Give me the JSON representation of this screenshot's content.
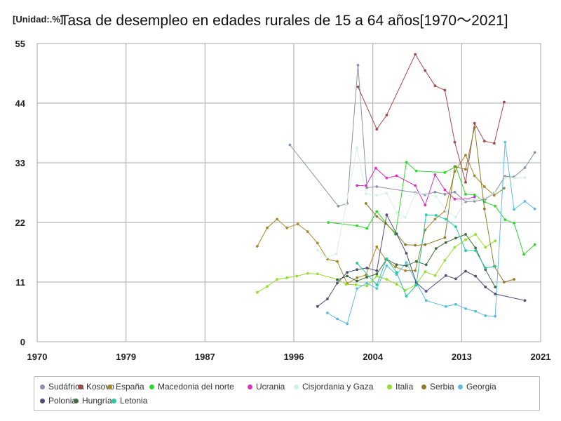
{
  "header": {
    "unit": "[Unidad:.%]",
    "title": "Tasa de desempleo en edades rurales de 15 a 64 años[1970～2021]"
  },
  "chart_data": {
    "type": "line",
    "title": "Tasa de desempleo en edades rurales de 15 a 64 años[1970～2021]",
    "unit": "[Unidad:.%]",
    "xlim": [
      1970,
      2021
    ],
    "ylim": [
      0,
      55
    ],
    "x_ticks": [
      1970,
      1979,
      1987,
      1996,
      2004,
      2013,
      2021
    ],
    "y_ticks": [
      0,
      11,
      22,
      33,
      44,
      55
    ],
    "grid": true,
    "legend_position": "bottom",
    "series": [
      {
        "name": "Sudáfrica",
        "color": "#8a92a8",
        "points": [
          [
            1995.6,
            36.3
          ],
          [
            2000.5,
            25
          ],
          [
            2001.4,
            25.5
          ],
          [
            2002.5,
            51
          ],
          [
            2003.4,
            28.4
          ],
          [
            2004.4,
            28.6
          ],
          [
            2008.3,
            27.5
          ],
          [
            2009.3,
            27.1
          ],
          [
            2010.3,
            27.6
          ],
          [
            2011.3,
            27.2
          ],
          [
            2012.3,
            27.6
          ],
          [
            2013.4,
            25.8
          ],
          [
            2014.3,
            25.9
          ],
          [
            2015.4,
            26.3
          ],
          [
            2016.3,
            27.4
          ],
          [
            2017.4,
            30.5
          ],
          [
            2018.3,
            30.4
          ],
          [
            2019.4,
            32.1
          ],
          [
            2020.4,
            34.9
          ]
        ]
      },
      {
        "name": "Kosovo",
        "color": "#a24a4a",
        "points": [
          [
            2002.5,
            47
          ],
          [
            2004.4,
            39.2
          ],
          [
            2005.4,
            41.8
          ],
          [
            2008.3,
            53
          ],
          [
            2009.3,
            50
          ],
          [
            2010.3,
            47.2
          ],
          [
            2011.3,
            46.4
          ],
          [
            2012.3,
            36.8
          ],
          [
            2013.4,
            29.4
          ],
          [
            2014.3,
            40.3
          ],
          [
            2015.3,
            37
          ],
          [
            2016.3,
            36.6
          ],
          [
            2017.3,
            44.2
          ]
        ]
      },
      {
        "name": "España",
        "color": "#a8882a",
        "points": [
          [
            1992.3,
            17.6
          ],
          [
            1993.3,
            21
          ],
          [
            1994.3,
            22.6
          ],
          [
            1995.3,
            21
          ],
          [
            1996.4,
            21.7
          ],
          [
            1997.4,
            20.3
          ],
          [
            1998.4,
            18.2
          ],
          [
            1999.4,
            15.2
          ],
          [
            2000.4,
            14.8
          ],
          [
            2001.4,
            10.7
          ],
          [
            2002.4,
            11.8
          ],
          [
            2003.3,
            12.3
          ],
          [
            2004.4,
            17.5
          ],
          [
            2005.3,
            15.2
          ],
          [
            2006.3,
            13.8
          ],
          [
            2007.3,
            13.1
          ],
          [
            2008.3,
            13.1
          ],
          [
            2009.3,
            20.6
          ],
          [
            2010.3,
            22.6
          ],
          [
            2011.3,
            24.1
          ],
          [
            2012.3,
            31.4
          ],
          [
            2013.4,
            34.4
          ],
          [
            2014.3,
            30.6
          ],
          [
            2015.3,
            28.6
          ],
          [
            2016.3,
            27
          ],
          [
            2017.3,
            28.3
          ]
        ]
      },
      {
        "name": "Macedonia del norte",
        "color": "#2ed82e",
        "points": [
          [
            1999.5,
            22
          ],
          [
            2002.4,
            21.4
          ],
          [
            2003.4,
            20.9
          ],
          [
            2004.4,
            24
          ],
          [
            2006.3,
            19.8
          ],
          [
            2007.4,
            33.1
          ],
          [
            2008.4,
            31.5
          ],
          [
            2011.3,
            31.2
          ],
          [
            2012.4,
            32.3
          ],
          [
            2013.4,
            27.2
          ],
          [
            2014.3,
            27.1
          ],
          [
            2015.3,
            25.8
          ],
          [
            2016.4,
            25
          ],
          [
            2017.4,
            22.5
          ],
          [
            2018.3,
            21.9
          ],
          [
            2019.3,
            16.1
          ],
          [
            2020.4,
            17.9
          ]
        ]
      },
      {
        "name": "Ucrania",
        "color": "#df2fc4",
        "points": [
          [
            2002.4,
            28.8
          ],
          [
            2003.3,
            28.8
          ],
          [
            2004.3,
            32
          ],
          [
            2005.4,
            30.2
          ],
          [
            2006.4,
            30.6
          ],
          [
            2008.3,
            28.8
          ],
          [
            2009.3,
            25.2
          ],
          [
            2010.3,
            30.8
          ],
          [
            2011.3,
            28
          ],
          [
            2012.3,
            26.3
          ],
          [
            2013.4,
            26.3
          ],
          [
            2014.3,
            26.7
          ]
        ]
      },
      {
        "name": "Cisjordania y Gaza",
        "color": "#d6efe4",
        "points": [
          [
            1998.4,
            16.9
          ],
          [
            1999.3,
            15.5
          ],
          [
            2000.3,
            16.2
          ],
          [
            2001.3,
            25.3
          ],
          [
            2002.4,
            35.8
          ],
          [
            2003.3,
            27.3
          ],
          [
            2004.4,
            27
          ],
          [
            2005.4,
            27.4
          ],
          [
            2006.4,
            23.8
          ],
          [
            2007.3,
            22.9
          ],
          [
            2008.3,
            27.3
          ],
          [
            2009.4,
            27.3
          ],
          [
            2010.4,
            26.8
          ],
          [
            2011.4,
            24.2
          ],
          [
            2012.4,
            23
          ],
          [
            2013.4,
            26.2
          ],
          [
            2014.4,
            26.2
          ],
          [
            2015.4,
            26.6
          ],
          [
            2016.4,
            27.5
          ],
          [
            2017.4,
            30.2
          ],
          [
            2018.4,
            30.2
          ],
          [
            2019.4,
            30.3
          ]
        ]
      },
      {
        "name": "Italia",
        "color": "#93e02a",
        "points": [
          [
            1992.3,
            9.1
          ],
          [
            1993.3,
            10.2
          ],
          [
            1994.3,
            11.5
          ],
          [
            1995.3,
            11.8
          ],
          [
            1996.3,
            12.1
          ],
          [
            1997.4,
            12.6
          ],
          [
            1998.4,
            12.5
          ],
          [
            2000.4,
            11.5
          ],
          [
            2001.3,
            10.6
          ],
          [
            2002.3,
            10.5
          ],
          [
            2003.4,
            10.3
          ],
          [
            2004.4,
            12.1
          ],
          [
            2005.4,
            11.5
          ],
          [
            2006.4,
            10.6
          ],
          [
            2007.3,
            9.5
          ],
          [
            2008.3,
            10.4
          ],
          [
            2009.3,
            12.9
          ],
          [
            2010.3,
            12.2
          ],
          [
            2011.3,
            15
          ],
          [
            2012.3,
            17.4
          ],
          [
            2013.4,
            18.8
          ],
          [
            2014.4,
            19.8
          ],
          [
            2015.4,
            17.4
          ],
          [
            2016.4,
            18.6
          ]
        ]
      },
      {
        "name": "Serbia",
        "color": "#8c7e2a",
        "points": [
          [
            2003.3,
            25.5
          ],
          [
            2004.4,
            23.1
          ],
          [
            2005.3,
            21.8
          ],
          [
            2006.4,
            19.9
          ],
          [
            2007.3,
            17.9
          ],
          [
            2008.3,
            17.8
          ],
          [
            2009.3,
            17.9
          ],
          [
            2011.3,
            19.2
          ],
          [
            2012.3,
            32.3
          ],
          [
            2013.4,
            31.8
          ],
          [
            2014.3,
            39.5
          ],
          [
            2015.3,
            24.5
          ],
          [
            2016.3,
            13.9
          ],
          [
            2017.3,
            11
          ],
          [
            2018.3,
            11.5
          ]
        ]
      },
      {
        "name": "Georgia",
        "color": "#5cbde0",
        "points": [
          [
            1999.4,
            5.3
          ],
          [
            2000.4,
            4.2
          ],
          [
            2001.4,
            3.3
          ],
          [
            2002.4,
            9.8
          ],
          [
            2003.4,
            10.8
          ],
          [
            2004.4,
            9.8
          ],
          [
            2005.4,
            14
          ],
          [
            2006.4,
            12.4
          ],
          [
            2007.4,
            14.6
          ],
          [
            2008.4,
            10.9
          ],
          [
            2009.4,
            7.6
          ],
          [
            2011.4,
            6.5
          ],
          [
            2012.4,
            6.9
          ],
          [
            2013.4,
            6.1
          ],
          [
            2014.4,
            5.6
          ],
          [
            2015.4,
            4.8
          ],
          [
            2016.4,
            4.7
          ],
          [
            2017.4,
            36.8
          ],
          [
            2018.3,
            24.4
          ],
          [
            2019.4,
            25.9
          ],
          [
            2020.4,
            24.5
          ]
        ]
      },
      {
        "name": "Polonia",
        "color": "#4e4e78",
        "points": [
          [
            1998.4,
            6.5
          ],
          [
            1999.4,
            7.9
          ],
          [
            2000.4,
            10.8
          ],
          [
            2001.4,
            12.8
          ],
          [
            2002.4,
            13.3
          ],
          [
            2003.4,
            13.6
          ],
          [
            2004.4,
            13.1
          ],
          [
            2005.4,
            23.4
          ],
          [
            2006.4,
            19.9
          ],
          [
            2007.4,
            16.3
          ],
          [
            2008.4,
            10.9
          ],
          [
            2009.4,
            9.3
          ],
          [
            2011.4,
            12.2
          ],
          [
            2012.4,
            11.6
          ],
          [
            2013.4,
            13
          ],
          [
            2014.4,
            12.1
          ],
          [
            2015.4,
            10.1
          ],
          [
            2016.4,
            8.8
          ],
          [
            2019.4,
            7.6
          ]
        ]
      },
      {
        "name": "Hungría",
        "color": "#3e6e3e",
        "points": [
          [
            2000.4,
            11.4
          ],
          [
            2001.4,
            12.1
          ],
          [
            2002.4,
            11.2
          ],
          [
            2003.4,
            11.9
          ],
          [
            2004.4,
            12.5
          ],
          [
            2005.4,
            15.2
          ],
          [
            2006.4,
            14.2
          ],
          [
            2007.4,
            14
          ],
          [
            2008.4,
            14.8
          ],
          [
            2009.4,
            14.2
          ],
          [
            2010.4,
            17.2
          ],
          [
            2011.4,
            18.3
          ],
          [
            2012.4,
            19.1
          ],
          [
            2013.4,
            19.8
          ],
          [
            2014.4,
            17.3
          ],
          [
            2015.4,
            13.3
          ],
          [
            2016.4,
            10.1
          ]
        ]
      },
      {
        "name": "Letonia",
        "color": "#26c8a8",
        "points": [
          [
            2002.4,
            14.5
          ],
          [
            2004.4,
            10.5
          ],
          [
            2005.4,
            15.3
          ],
          [
            2006.4,
            12.8
          ],
          [
            2007.4,
            8.4
          ],
          [
            2008.4,
            10.4
          ],
          [
            2009.4,
            23.4
          ],
          [
            2010.4,
            23.3
          ],
          [
            2011.4,
            22.6
          ],
          [
            2012.4,
            21.2
          ],
          [
            2013.4,
            16.8
          ],
          [
            2014.4,
            16.8
          ],
          [
            2015.4,
            13.6
          ],
          [
            2016.4,
            13.9
          ]
        ]
      }
    ]
  }
}
